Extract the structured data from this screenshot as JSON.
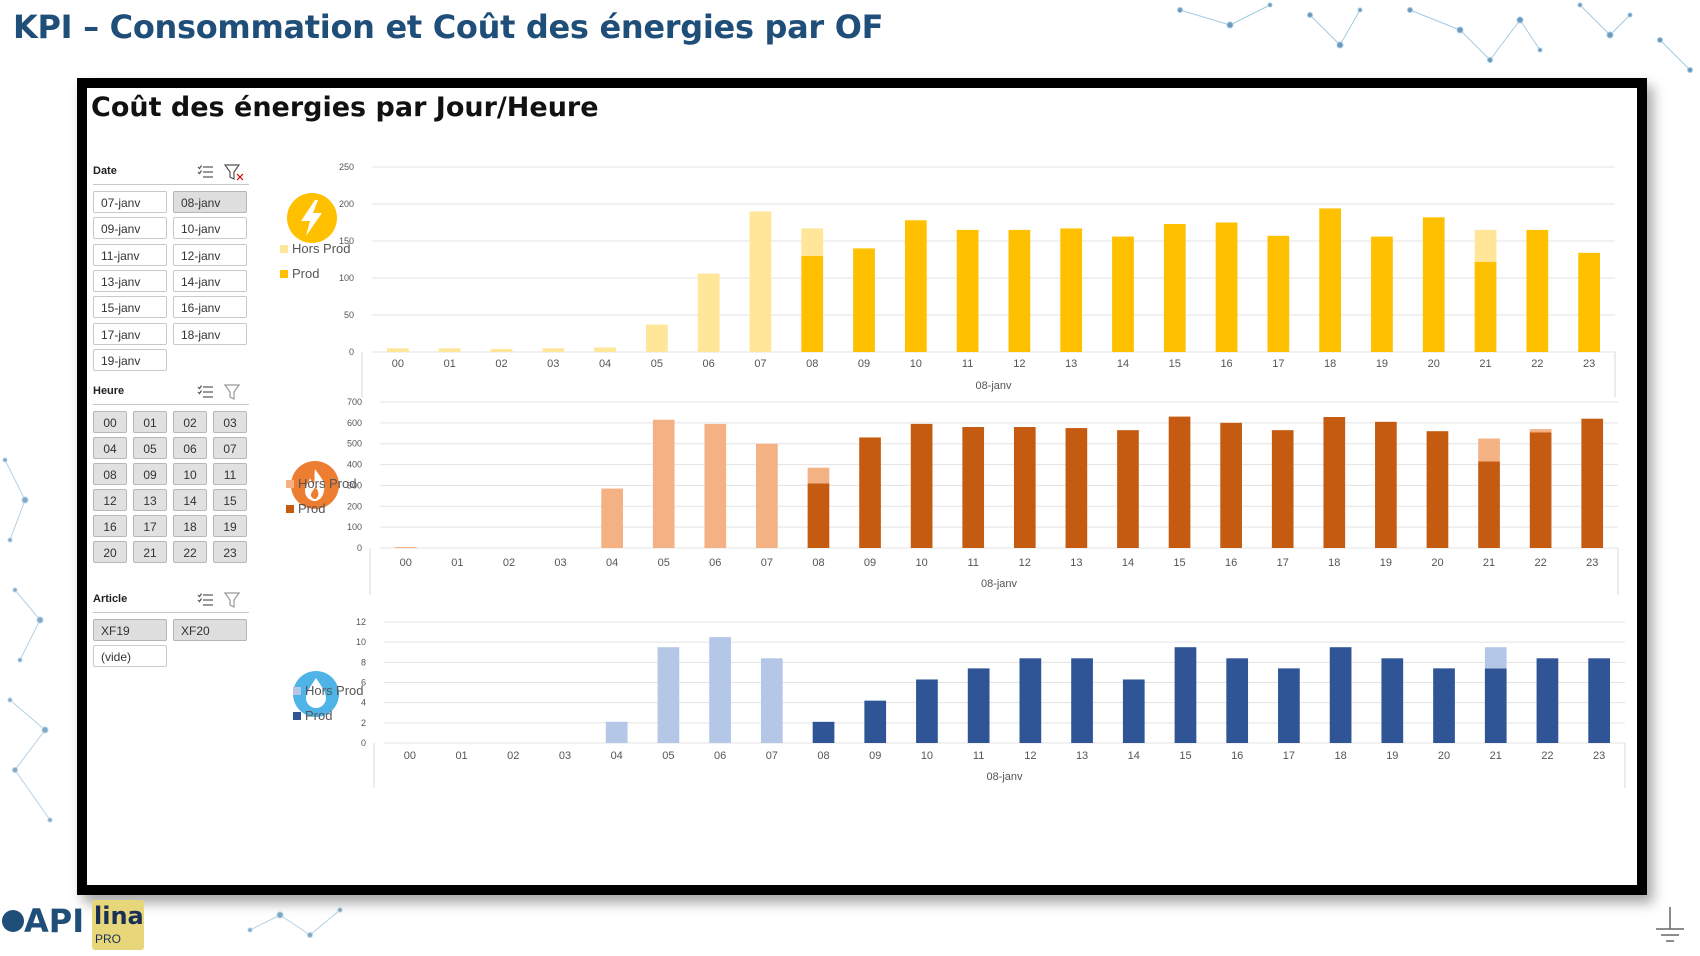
{
  "slide": {
    "title": "KPI – Consommation et Coût des énergies par OF",
    "logo_text": "API",
    "logo2_text": "lina",
    "logo2_sub": "PRO"
  },
  "panel": {
    "title": "Coût des énergies par Jour/Heure"
  },
  "slicers": {
    "date": {
      "title": "Date",
      "items": [
        "07-janv",
        "08-janv",
        "09-janv",
        "10-janv",
        "11-janv",
        "12-janv",
        "13-janv",
        "14-janv",
        "15-janv",
        "16-janv",
        "17-janv",
        "18-janv",
        "19-janv"
      ],
      "selected": "08-janv"
    },
    "heure": {
      "title": "Heure",
      "items": [
        "00",
        "01",
        "02",
        "03",
        "04",
        "05",
        "06",
        "07",
        "08",
        "09",
        "10",
        "11",
        "12",
        "13",
        "14",
        "15",
        "16",
        "17",
        "18",
        "19",
        "20",
        "21",
        "22",
        "23"
      ]
    },
    "article": {
      "title": "Article",
      "items": [
        "XF19",
        "XF20",
        "(vide)"
      ]
    }
  },
  "colors": {
    "elec_prod": "#ffc000",
    "elec_hors": "#ffe699",
    "gas_prod": "#c55a11",
    "gas_hors": "#f4b183",
    "water_prod": "#2f5597",
    "water_hors": "#b4c7e7"
  },
  "chart_data": [
    {
      "type": "bar",
      "energy_icon": "lightning-icon",
      "stacked": true,
      "categories": [
        "00",
        "01",
        "02",
        "03",
        "04",
        "05",
        "06",
        "07",
        "08",
        "09",
        "10",
        "11",
        "12",
        "13",
        "14",
        "15",
        "16",
        "17",
        "18",
        "19",
        "20",
        "21",
        "22",
        "23"
      ],
      "xlabel": "08-janv",
      "ylim": [
        0,
        250
      ],
      "yticks": [
        0,
        50,
        100,
        150,
        200,
        250
      ],
      "legend_placement": "left",
      "series": [
        {
          "name": "Hors Prod",
          "values": [
            5,
            5,
            4,
            5,
            6,
            37,
            106,
            190,
            37,
            0,
            0,
            0,
            0,
            0,
            0,
            0,
            0,
            0,
            0,
            0,
            0,
            43,
            0,
            0
          ]
        },
        {
          "name": "Prod",
          "values": [
            0,
            0,
            0,
            0,
            0,
            0,
            0,
            0,
            130,
            140,
            178,
            165,
            165,
            167,
            156,
            173,
            175,
            157,
            194,
            156,
            182,
            122,
            165,
            134
          ]
        }
      ]
    },
    {
      "type": "bar",
      "energy_icon": "flame-icon",
      "stacked": true,
      "categories": [
        "00",
        "01",
        "02",
        "03",
        "04",
        "05",
        "06",
        "07",
        "08",
        "09",
        "10",
        "11",
        "12",
        "13",
        "14",
        "15",
        "16",
        "17",
        "18",
        "19",
        "20",
        "21",
        "22",
        "23"
      ],
      "xlabel": "08-janv",
      "ylim": [
        0,
        700
      ],
      "yticks": [
        0,
        100,
        200,
        300,
        400,
        500,
        600,
        700
      ],
      "legend_placement": "left",
      "series": [
        {
          "name": "Hors Prod",
          "values": [
            5,
            0,
            0,
            0,
            285,
            615,
            595,
            500,
            75,
            0,
            0,
            0,
            0,
            0,
            0,
            0,
            0,
            0,
            0,
            0,
            0,
            110,
            15,
            0
          ]
        },
        {
          "name": "Prod",
          "values": [
            0,
            0,
            0,
            0,
            0,
            0,
            0,
            0,
            310,
            530,
            595,
            580,
            580,
            575,
            565,
            630,
            600,
            565,
            628,
            605,
            560,
            415,
            555,
            620
          ]
        }
      ]
    },
    {
      "type": "bar",
      "energy_icon": "water-drop-icon",
      "stacked": true,
      "categories": [
        "00",
        "01",
        "02",
        "03",
        "04",
        "05",
        "06",
        "07",
        "08",
        "09",
        "10",
        "11",
        "12",
        "13",
        "14",
        "15",
        "16",
        "17",
        "18",
        "19",
        "20",
        "21",
        "22",
        "23"
      ],
      "xlabel": "08-janv",
      "ylim": [
        0,
        12
      ],
      "yticks": [
        0,
        2,
        4,
        6,
        8,
        10,
        12
      ],
      "legend_placement": "left",
      "series": [
        {
          "name": "Hors Prod",
          "values": [
            0,
            0,
            0,
            0,
            2.1,
            9.5,
            10.5,
            8.4,
            0,
            0,
            0,
            0,
            0,
            0,
            0,
            0,
            0,
            0,
            0,
            0,
            0,
            2.1,
            0,
            0
          ]
        },
        {
          "name": "Prod",
          "values": [
            0,
            0,
            0,
            0,
            0,
            0,
            0,
            0,
            2.1,
            4.2,
            6.3,
            7.4,
            8.4,
            8.4,
            6.3,
            9.5,
            8.4,
            7.4,
            9.5,
            8.4,
            7.4,
            7.4,
            8.4,
            8.4
          ]
        }
      ]
    }
  ]
}
